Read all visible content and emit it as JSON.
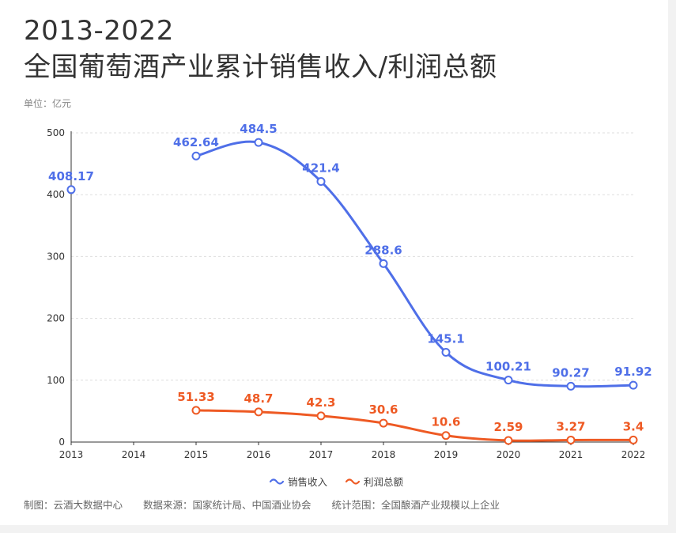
{
  "header": {
    "title_line1": "2013-2022",
    "title_line2": "全国葡萄酒产业累计销售收入/利润总额",
    "unit": "单位：亿元"
  },
  "footer": {
    "maker": "制图：云酒大数据中心",
    "source": "数据来源：国家统计局、中国酒业协会",
    "scope": "统计范围：全国酿酒产业规模以上企业"
  },
  "colors": {
    "revenue": "#4f6fe8",
    "profit": "#ee5a24",
    "grid": "#dddddd"
  },
  "chart_data": {
    "type": "line",
    "title": "全国葡萄酒产业累计销售收入/利润总额",
    "xlabel": "",
    "ylabel": "",
    "ylim": [
      0,
      500
    ],
    "yticks": [
      0,
      100,
      200,
      300,
      400,
      500
    ],
    "x": [
      "2013",
      "2014",
      "2015",
      "2016",
      "2017",
      "2018",
      "2019",
      "2020",
      "2021",
      "2022"
    ],
    "grid": true,
    "legend": "bottom",
    "series": [
      {
        "name": "销售收入",
        "color": "#4f6fe8",
        "values": [
          408.17,
          null,
          462.64,
          484.5,
          421.4,
          288.6,
          145.1,
          100.21,
          90.27,
          91.92
        ],
        "labels": [
          "408.17",
          null,
          "462.64",
          "484.5",
          "421.4",
          "288.6",
          "145.1",
          "100.21",
          "90.27",
          "91.92"
        ]
      },
      {
        "name": "利润总额",
        "color": "#ee5a24",
        "values": [
          null,
          null,
          51.33,
          48.7,
          42.3,
          30.6,
          10.6,
          2.59,
          3.27,
          3.4
        ],
        "labels": [
          null,
          null,
          "51.33",
          "48.7",
          "42.3",
          "30.6",
          "10.6",
          "2.59",
          "3.27",
          "3.4"
        ]
      }
    ]
  }
}
